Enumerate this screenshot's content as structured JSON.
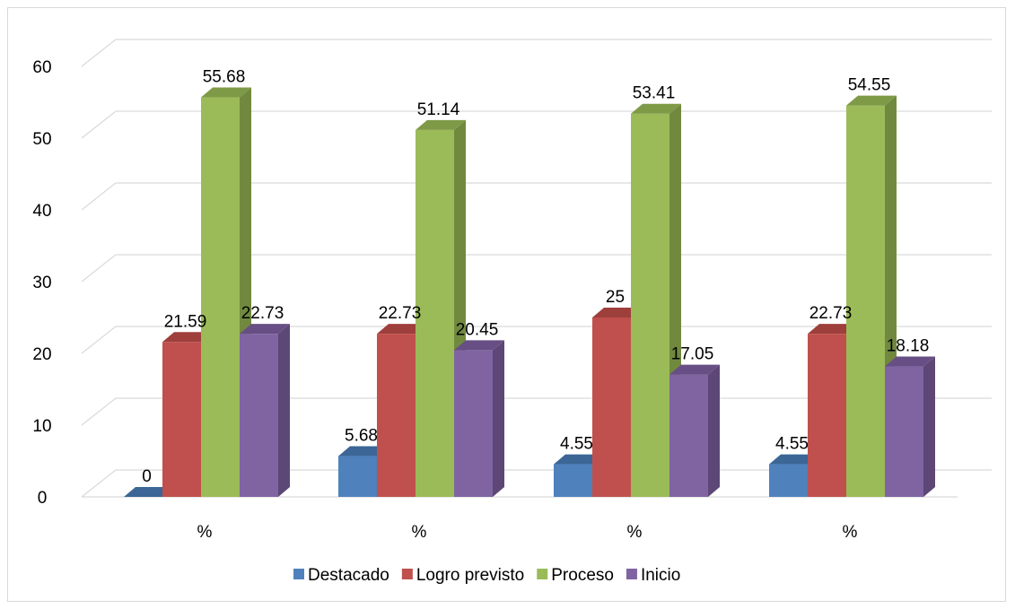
{
  "chart_data": {
    "type": "bar",
    "style": "3d-clustered-column",
    "categories": [
      "%",
      "%",
      "%",
      "%"
    ],
    "series": [
      {
        "name": "Destacado",
        "color": "#4F81BD",
        "side_color": "#385D8A",
        "top_color": "#3B6696",
        "values": [
          0,
          5.68,
          4.55,
          4.55
        ]
      },
      {
        "name": "Logro previsto",
        "color": "#C0504D",
        "side_color": "#8C3836",
        "top_color": "#9E3F3C",
        "values": [
          21.59,
          22.73,
          25,
          22.73
        ]
      },
      {
        "name": "Proceso",
        "color": "#9BBB59",
        "side_color": "#71893F",
        "top_color": "#7F9A47",
        "values": [
          55.68,
          51.14,
          53.41,
          54.55
        ]
      },
      {
        "name": "Inicio",
        "color": "#8064A2",
        "side_color": "#5C4776",
        "top_color": "#674F85",
        "values": [
          22.73,
          20.45,
          17.05,
          18.18
        ]
      }
    ],
    "data_labels": [
      [
        "0",
        "5.68",
        "4.55",
        "4.55"
      ],
      [
        "21.59",
        "22.73",
        "25",
        "22.73"
      ],
      [
        "55.68",
        "51.14",
        "53.41",
        "54.55"
      ],
      [
        "22.73",
        "20.45",
        "17.05",
        "18.18"
      ]
    ],
    "title": "",
    "xlabel": "",
    "ylabel": "",
    "ylim": [
      0,
      60
    ],
    "yticks": [
      0,
      10,
      20,
      30,
      40,
      50,
      60
    ],
    "ytick_labels": [
      "0",
      "10",
      "20",
      "30",
      "40",
      "50",
      "60"
    ],
    "grid": true,
    "legend_position": "bottom"
  }
}
